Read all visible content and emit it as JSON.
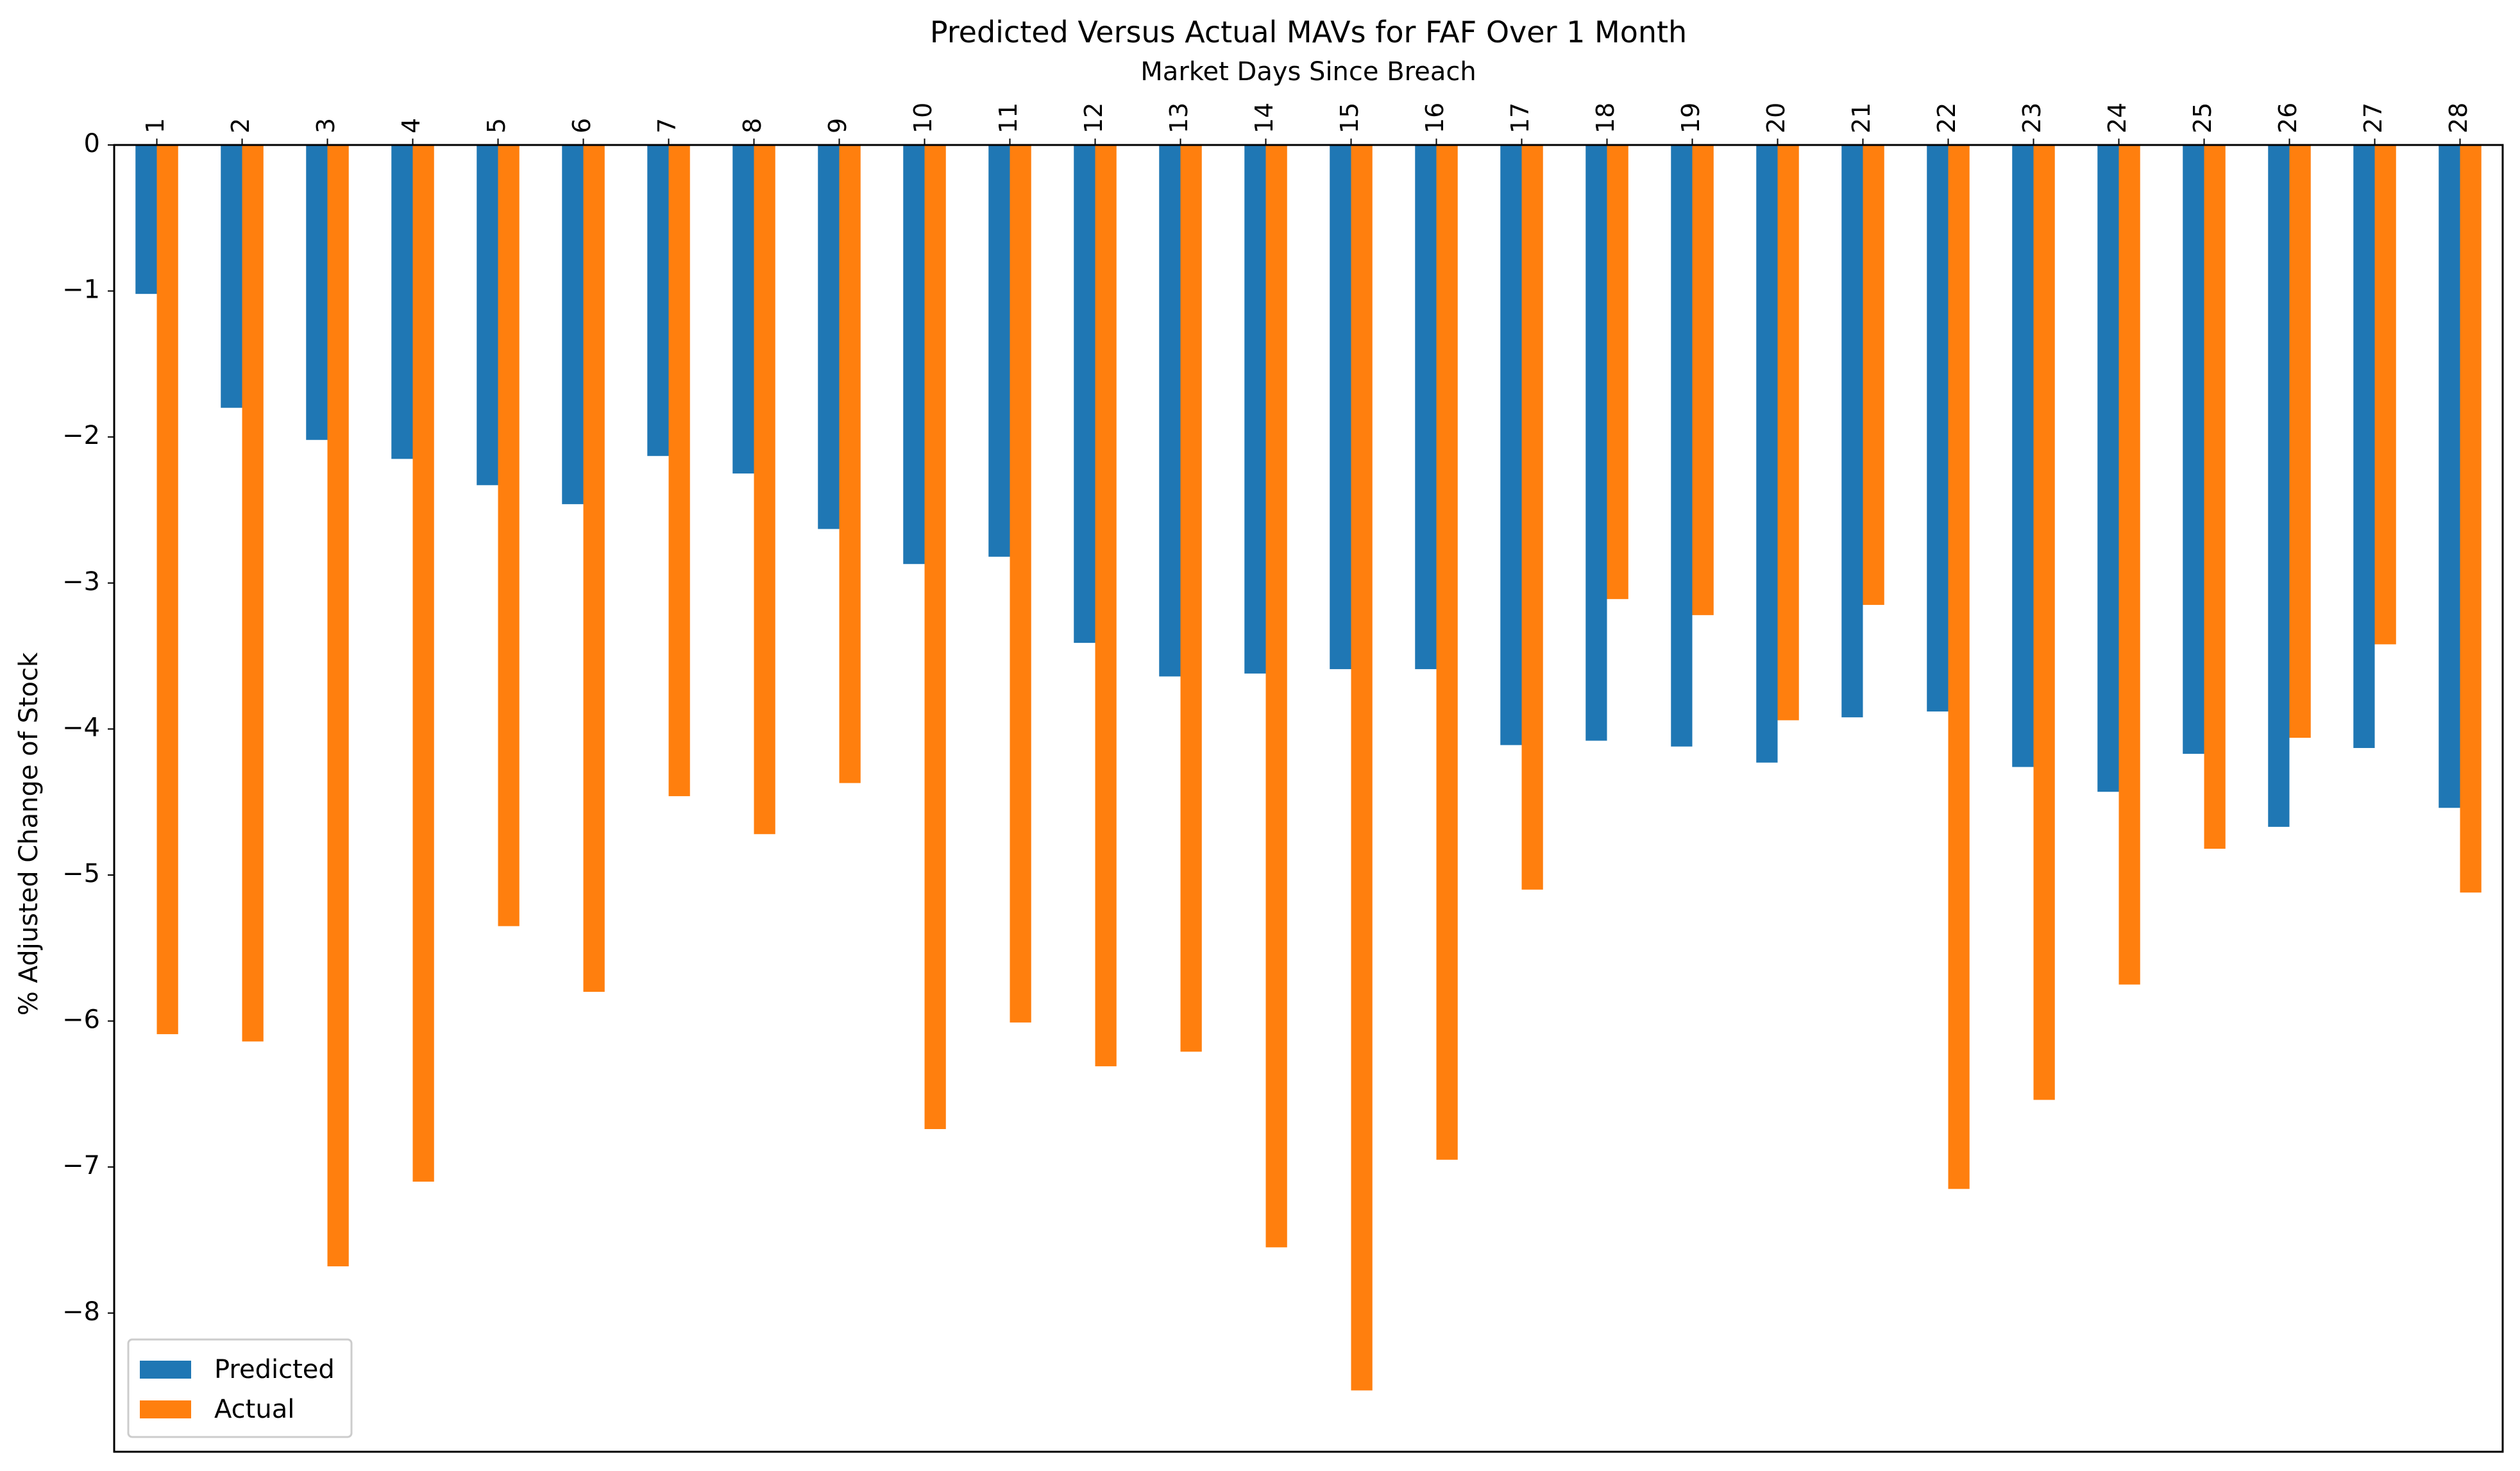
{
  "chart_data": {
    "type": "bar",
    "title": "Predicted Versus Actual MAVs for FAF Over 1 Month",
    "xlabel": "Market Days Since Breach",
    "ylabel": "% Adjusted Change of Stock",
    "x_axis_position": "top",
    "categories": [
      "1",
      "2",
      "3",
      "4",
      "5",
      "6",
      "7",
      "8",
      "9",
      "10",
      "11",
      "12",
      "13",
      "14",
      "15",
      "16",
      "17",
      "18",
      "19",
      "20",
      "21",
      "22",
      "23",
      "24",
      "25",
      "26",
      "27",
      "28"
    ],
    "series": [
      {
        "name": "Predicted",
        "color": "#1f77b4",
        "values": [
          -1.02,
          -1.8,
          -2.02,
          -2.15,
          -2.33,
          -2.46,
          -2.13,
          -2.25,
          -2.63,
          -2.87,
          -2.82,
          -3.41,
          -3.64,
          -3.62,
          -3.59,
          -3.59,
          -4.11,
          -4.08,
          -4.12,
          -4.23,
          -3.92,
          -3.88,
          -4.26,
          -4.43,
          -4.17,
          -4.67,
          -4.13,
          -4.54
        ]
      },
      {
        "name": "Actual",
        "color": "#ff7f0e",
        "values": [
          -6.09,
          -6.14,
          -7.68,
          -7.1,
          -5.35,
          -5.8,
          -4.46,
          -4.72,
          -4.37,
          -6.74,
          -6.01,
          -6.31,
          -6.21,
          -7.55,
          -8.53,
          -6.95,
          -5.1,
          -3.11,
          -3.22,
          -3.94,
          -3.15,
          -7.15,
          -6.54,
          -5.75,
          -4.82,
          -4.06,
          -3.42,
          -5.12
        ]
      }
    ],
    "yticks": [
      0,
      -1,
      -2,
      -3,
      -4,
      -5,
      -6,
      -7,
      -8
    ],
    "ytick_labels": [
      "0",
      "−1",
      "−2",
      "−3",
      "−4",
      "−5",
      "−6",
      "−7",
      "−8"
    ],
    "ylim": [
      -8.95,
      0
    ],
    "grid": false,
    "legend_position": "bottom-left"
  }
}
